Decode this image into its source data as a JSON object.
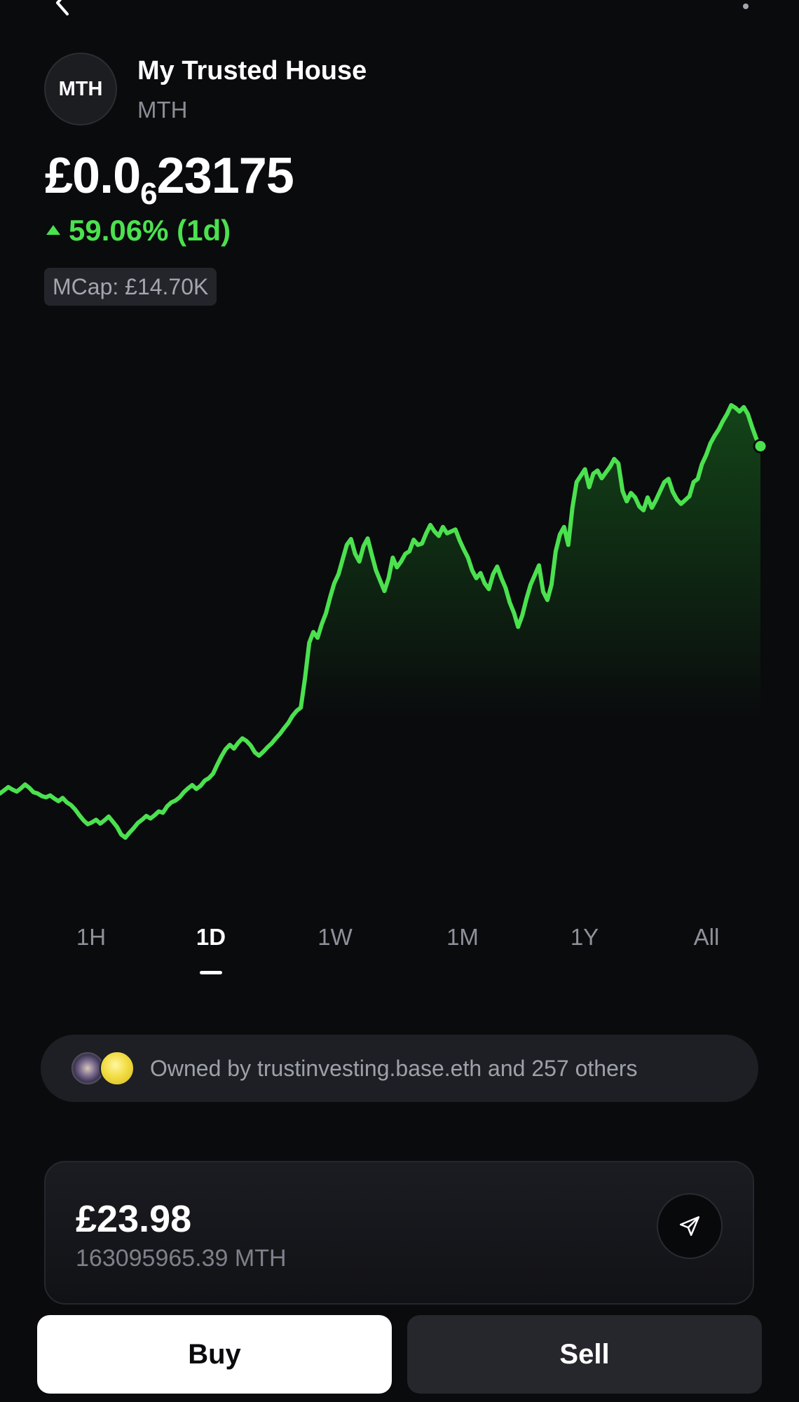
{
  "header": {
    "avatar_text": "MTH",
    "token_name": "My Trusted House",
    "token_symbol": "MTH",
    "back_icon": "chevron-left-icon",
    "more_icon": "more-vertical-icon"
  },
  "price": {
    "prefix": "£0.0",
    "subscript_zeros": "6",
    "digits": "23175",
    "change_text": "59.06% (1d)",
    "change_direction": "up",
    "change_color": "#4be14f",
    "mcap": "MCap: £14.70K"
  },
  "timeframes": {
    "tabs": [
      "1H",
      "1D",
      "1W",
      "1M",
      "1Y",
      "All"
    ],
    "active": "1D"
  },
  "owners": {
    "text": "Owned by trustinvesting.base.eth and 257 others"
  },
  "balance": {
    "value": "£23.98",
    "amount": "163095965.39 MTH",
    "send_icon": "send-icon"
  },
  "actions": {
    "buy_label": "Buy",
    "sell_label": "Sell"
  },
  "chart_data": {
    "type": "line",
    "line_color": "#4be14f",
    "grid": false,
    "series": [
      {
        "values": [
          40,
          40.5,
          41,
          40.6,
          40.3,
          40.8,
          41.4,
          40.9,
          40.2,
          40,
          39.6,
          39.4,
          39.7,
          39.2,
          38.8,
          39.3,
          38.6,
          38.2,
          37.5,
          36.6,
          35.8,
          35.2,
          35.5,
          35.9,
          35.3,
          35.8,
          36.4,
          35.6,
          34.8,
          33.6,
          33.1,
          33.9,
          34.6,
          35.4,
          35.9,
          36.5,
          36.1,
          36.6,
          37.2,
          37.0,
          38.0,
          38.6,
          38.9,
          39.4,
          40.2,
          40.8,
          41.3,
          40.7,
          41.2,
          42.0,
          42.4,
          43.1,
          44.5,
          45.8,
          46.9,
          47.6,
          47.0,
          47.9,
          48.6,
          48.2,
          47.5,
          46.4,
          45.9,
          46.5,
          47.2,
          47.8,
          48.6,
          49.3,
          50.2,
          51.0,
          52.1,
          52.9,
          53.4,
          58.0,
          63.5,
          65.2,
          64.3,
          66.4,
          68.1,
          70.6,
          72.8,
          74.2,
          76.5,
          78.8,
          79.7,
          77.4,
          76.2,
          78.6,
          79.8,
          77.2,
          74.8,
          73.2,
          71.6,
          73.6,
          76.8,
          75.3,
          76.2,
          77.4,
          77.8,
          79.6,
          78.8,
          79.0,
          80.6,
          81.9,
          80.9,
          80.2,
          81.6,
          80.6,
          80.9,
          81.2,
          79.5,
          78.1,
          76.8,
          74.8,
          73.6,
          74.4,
          72.8,
          71.9,
          74.2,
          75.4,
          73.6,
          72.1,
          69.8,
          68.2,
          66.0,
          67.8,
          70.4,
          72.6,
          74.1,
          75.6,
          71.5,
          70.2,
          72.6,
          77.8,
          80.4,
          81.6,
          78.8,
          84.6,
          88.6,
          89.6,
          90.6,
          87.8,
          89.9,
          90.4,
          89.2,
          90.1,
          91.0,
          92.2,
          91.5,
          87.2,
          85.6,
          86.9,
          86.2,
          84.8,
          84.2,
          86.2,
          84.6,
          85.8,
          87.2,
          88.6,
          89.1,
          87.1,
          85.9,
          85.2,
          85.8,
          86.4,
          88.6,
          89.1,
          91.4,
          92.8,
          94.6,
          95.8,
          96.8,
          98.1,
          99.2,
          100.6,
          100.2,
          99.6,
          100.3,
          99.2,
          97.2,
          95.4,
          94.2
        ]
      }
    ]
  }
}
